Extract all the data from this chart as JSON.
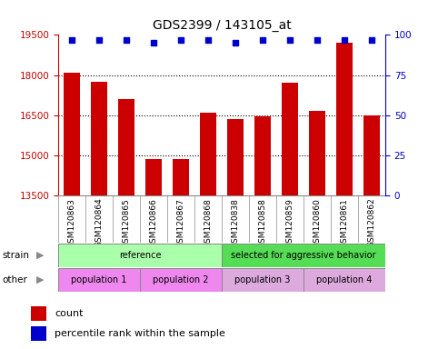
{
  "title": "GDS2399 / 143105_at",
  "samples": [
    "GSM120863",
    "GSM120864",
    "GSM120865",
    "GSM120866",
    "GSM120867",
    "GSM120868",
    "GSM120838",
    "GSM120858",
    "GSM120859",
    "GSM120860",
    "GSM120861",
    "GSM120862"
  ],
  "counts": [
    18100,
    17750,
    17100,
    14850,
    14850,
    16600,
    16350,
    16450,
    17700,
    16650,
    19200,
    16500
  ],
  "percentile_ranks": [
    97,
    97,
    97,
    95,
    97,
    97,
    95,
    97,
    97,
    97,
    97,
    97
  ],
  "ylim_left": [
    13500,
    19500
  ],
  "ylim_right": [
    0,
    100
  ],
  "yticks_left": [
    13500,
    15000,
    16500,
    18000,
    19500
  ],
  "yticks_right": [
    0,
    25,
    50,
    75,
    100
  ],
  "bar_color": "#cc0000",
  "dot_color": "#0000cc",
  "grid_color": "#000000",
  "bar_width": 0.6,
  "strain_labels": [
    {
      "text": "reference",
      "start": 0,
      "end": 5,
      "color": "#aaffaa"
    },
    {
      "text": "selected for aggressive behavior",
      "start": 6,
      "end": 11,
      "color": "#55dd55"
    }
  ],
  "other_labels": [
    {
      "text": "population 1",
      "start": 0,
      "end": 2,
      "color": "#ee88ee"
    },
    {
      "text": "population 2",
      "start": 3,
      "end": 5,
      "color": "#ee88ee"
    },
    {
      "text": "population 3",
      "start": 6,
      "end": 8,
      "color": "#ddaadd"
    },
    {
      "text": "population 4",
      "start": 9,
      "end": 11,
      "color": "#ddaadd"
    }
  ],
  "xlabel_color": "#cc0000",
  "ylabel_right_color": "#0000cc",
  "tick_label_color_left": "#cc0000",
  "tick_label_color_right": "#0000cc",
  "background_color": "#ffffff",
  "plot_bg": "#ffffff",
  "xtick_bg": "#cccccc",
  "xtick_border": "#888888"
}
